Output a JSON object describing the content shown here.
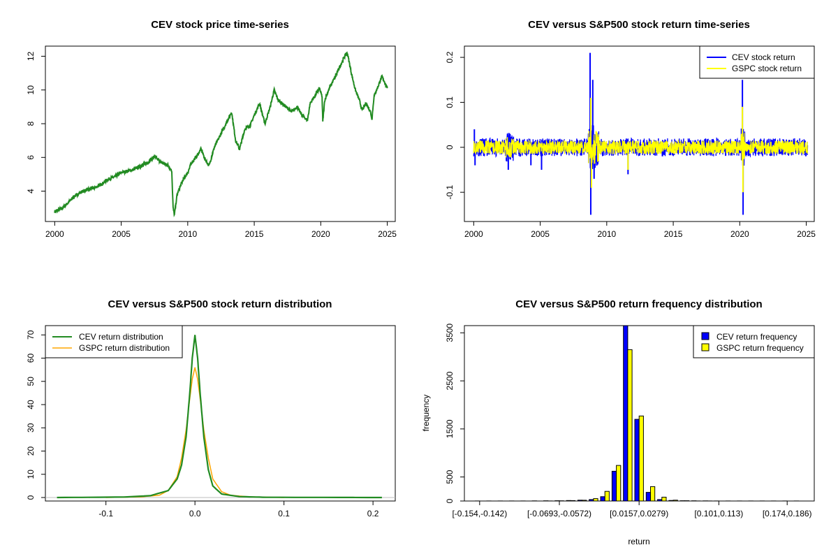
{
  "colors": {
    "price": "#228B22",
    "cev": "#0000FF",
    "gspc": "#FFFF00",
    "gspc_density": "#FFA500",
    "density_cev": "#228B22",
    "zero_line": "#BEBEBE"
  },
  "chart_data": [
    {
      "id": "price",
      "type": "line",
      "title": "CEV stock price time-series",
      "xlabel": "",
      "ylabel": "",
      "xlim": [
        1999.3,
        2025.6
      ],
      "ylim": [
        2.2,
        12.6
      ],
      "xticks": [
        2000,
        2005,
        2010,
        2015,
        2020,
        2025
      ],
      "yticks": [
        4,
        6,
        8,
        10,
        12
      ],
      "series": [
        {
          "color": "#228B22",
          "points": [
            [
              2000.0,
              2.8
            ],
            [
              2000.5,
              2.95
            ],
            [
              2001.0,
              3.3
            ],
            [
              2001.5,
              3.7
            ],
            [
              2002.0,
              3.95
            ],
            [
              2002.5,
              4.1
            ],
            [
              2003.0,
              4.2
            ],
            [
              2003.5,
              4.4
            ],
            [
              2004.0,
              4.7
            ],
            [
              2004.5,
              4.85
            ],
            [
              2005.0,
              5.1
            ],
            [
              2005.5,
              5.2
            ],
            [
              2006.0,
              5.3
            ],
            [
              2006.5,
              5.5
            ],
            [
              2007.0,
              5.7
            ],
            [
              2007.5,
              6.05
            ],
            [
              2008.0,
              5.7
            ],
            [
              2008.5,
              5.55
            ],
            [
              2008.8,
              5.2
            ],
            [
              2008.9,
              3.0
            ],
            [
              2009.0,
              2.6
            ],
            [
              2009.2,
              3.8
            ],
            [
              2009.6,
              4.6
            ],
            [
              2010.0,
              5.1
            ],
            [
              2010.3,
              5.7
            ],
            [
              2010.7,
              6.1
            ],
            [
              2011.0,
              6.5
            ],
            [
              2011.3,
              5.9
            ],
            [
              2011.6,
              5.5
            ],
            [
              2012.0,
              6.6
            ],
            [
              2012.5,
              7.4
            ],
            [
              2013.0,
              8.2
            ],
            [
              2013.3,
              8.7
            ],
            [
              2013.6,
              7.0
            ],
            [
              2013.9,
              6.5
            ],
            [
              2014.3,
              7.7
            ],
            [
              2014.7,
              7.9
            ],
            [
              2015.0,
              8.5
            ],
            [
              2015.4,
              9.2
            ],
            [
              2015.8,
              8.0
            ],
            [
              2016.2,
              9.0
            ],
            [
              2016.5,
              10.0
            ],
            [
              2016.8,
              9.4
            ],
            [
              2017.1,
              9.2
            ],
            [
              2017.4,
              9.0
            ],
            [
              2017.8,
              8.7
            ],
            [
              2018.2,
              9.0
            ],
            [
              2018.6,
              8.5
            ],
            [
              2019.0,
              8.2
            ],
            [
              2019.2,
              9.2
            ],
            [
              2019.6,
              9.7
            ],
            [
              2019.9,
              10.1
            ],
            [
              2020.1,
              9.6
            ],
            [
              2020.15,
              8.1
            ],
            [
              2020.3,
              9.4
            ],
            [
              2020.7,
              10.2
            ],
            [
              2021.1,
              10.8
            ],
            [
              2021.5,
              11.5
            ],
            [
              2021.8,
              12.0
            ],
            [
              2022.0,
              12.2
            ],
            [
              2022.3,
              11.0
            ],
            [
              2022.6,
              10.0
            ],
            [
              2022.9,
              9.4
            ],
            [
              2023.1,
              8.8
            ],
            [
              2023.4,
              9.2
            ],
            [
              2023.7,
              8.8
            ],
            [
              2023.85,
              8.3
            ],
            [
              2024.0,
              9.6
            ],
            [
              2024.3,
              10.2
            ],
            [
              2024.6,
              10.8
            ],
            [
              2024.9,
              10.3
            ],
            [
              2025.0,
              10.1
            ]
          ]
        }
      ]
    },
    {
      "id": "returns",
      "type": "line",
      "title": "CEV versus S&P500 stock return time-series",
      "xlabel": "",
      "ylabel": "",
      "xlim": [
        1999.3,
        2025.6
      ],
      "ylim": [
        -0.165,
        0.225
      ],
      "xticks": [
        2000,
        2005,
        2010,
        2015,
        2020,
        2025
      ],
      "yticks": [
        -0.1,
        0.0,
        0.1,
        0.2
      ],
      "legend": {
        "position": "top-right",
        "entries": [
          "CEV stock return",
          "GSPC stock return"
        ]
      },
      "series": [
        {
          "name": "CEV stock return",
          "color": "#0000FF",
          "typical_amplitude": 0.02,
          "spikes": [
            [
              2000.05,
              0.04
            ],
            [
              2000.1,
              -0.04
            ],
            [
              2002.6,
              -0.05
            ],
            [
              2004.3,
              -0.04
            ],
            [
              2005.1,
              -0.05
            ],
            [
              2008.75,
              0.21
            ],
            [
              2008.8,
              -0.15
            ],
            [
              2008.95,
              0.15
            ],
            [
              2009.05,
              -0.07
            ],
            [
              2011.6,
              -0.06
            ],
            [
              2020.2,
              0.15
            ],
            [
              2020.25,
              -0.15
            ]
          ]
        },
        {
          "name": "GSPC stock return",
          "color": "#FFFF00",
          "typical_amplitude": 0.015,
          "spikes": [
            [
              2008.8,
              0.11
            ],
            [
              2008.85,
              -0.09
            ],
            [
              2020.2,
              0.09
            ],
            [
              2020.24,
              -0.1
            ],
            [
              2011.6,
              -0.05
            ]
          ]
        }
      ]
    },
    {
      "id": "density",
      "type": "line",
      "title": "CEV versus S&P500 stock return distribution",
      "xlabel": "",
      "ylabel": "",
      "xlim": [
        -0.168,
        0.225
      ],
      "ylim": [
        -1.5,
        74
      ],
      "xticks": [
        -0.1,
        0.0,
        0.1,
        0.2
      ],
      "xtick_labels": [
        "-0.1",
        "0.0",
        "0.1",
        "0.2"
      ],
      "yticks": [
        0,
        10,
        20,
        30,
        40,
        50,
        60,
        70
      ],
      "legend": {
        "position": "top-left",
        "entries": [
          "CEV return distribution",
          "GSPC return distribution"
        ]
      },
      "series": [
        {
          "name": "CEV return distribution",
          "color": "#228B22",
          "points": [
            [
              -0.155,
              0
            ],
            [
              -0.08,
              0.2
            ],
            [
              -0.05,
              0.8
            ],
            [
              -0.03,
              3
            ],
            [
              -0.02,
              8
            ],
            [
              -0.015,
              14
            ],
            [
              -0.01,
              26
            ],
            [
              -0.006,
              44
            ],
            [
              -0.003,
              60
            ],
            [
              0.0,
              70
            ],
            [
              0.003,
              60
            ],
            [
              0.006,
              44
            ],
            [
              0.01,
              26
            ],
            [
              0.015,
              12
            ],
            [
              0.02,
              5
            ],
            [
              0.03,
              1.5
            ],
            [
              0.05,
              0.4
            ],
            [
              0.08,
              0.1
            ],
            [
              0.21,
              0
            ]
          ]
        },
        {
          "name": "GSPC return distribution",
          "color": "#FFA500",
          "points": [
            [
              -0.1,
              0
            ],
            [
              -0.06,
              0.3
            ],
            [
              -0.04,
              1
            ],
            [
              -0.03,
              3
            ],
            [
              -0.02,
              9
            ],
            [
              -0.015,
              17
            ],
            [
              -0.01,
              29
            ],
            [
              -0.006,
              42
            ],
            [
              -0.003,
              51
            ],
            [
              0.0,
              56
            ],
            [
              0.003,
              51
            ],
            [
              0.006,
              42
            ],
            [
              0.01,
              29
            ],
            [
              0.015,
              17
            ],
            [
              0.02,
              8
            ],
            [
              0.03,
              2.5
            ],
            [
              0.04,
              1
            ],
            [
              0.06,
              0.3
            ],
            [
              0.1,
              0
            ]
          ]
        }
      ]
    },
    {
      "id": "frequency",
      "type": "bar",
      "title": "CEV versus S&P500 return frequency distribution",
      "xlabel": "return",
      "ylabel": "frequency",
      "ylim": [
        0,
        3650
      ],
      "yticks": [
        0,
        500,
        1500,
        2500,
        3500
      ],
      "x_tick_labels": [
        "[-0.154,-0.142)",
        "[-0.0693,-0.0572)",
        "[0.0157,0.0279)",
        "[0.101,0.113)",
        "[0.174,0.186)"
      ],
      "x_tick_label_bins": [
        0,
        7,
        14,
        21,
        27
      ],
      "n_bins": 29,
      "legend": {
        "position": "top-right",
        "entries": [
          "CEV return frequency",
          "GSPC return frequency"
        ]
      },
      "series": [
        {
          "name": "CEV return frequency",
          "color": "#0000FF",
          "values": [
            2,
            1,
            1,
            2,
            2,
            3,
            4,
            6,
            10,
            18,
            30,
            90,
            620,
            3650,
            1700,
            180,
            30,
            12,
            6,
            4,
            3,
            2,
            1,
            1,
            1,
            1,
            1,
            2,
            1
          ]
        },
        {
          "name": "GSPC return frequency",
          "color": "#FFFF00",
          "values": [
            0,
            0,
            0,
            0,
            0,
            0,
            2,
            4,
            8,
            16,
            50,
            200,
            740,
            3150,
            1770,
            300,
            80,
            18,
            6,
            2,
            1,
            0,
            0,
            0,
            0,
            0,
            0,
            0,
            0
          ]
        }
      ]
    }
  ]
}
